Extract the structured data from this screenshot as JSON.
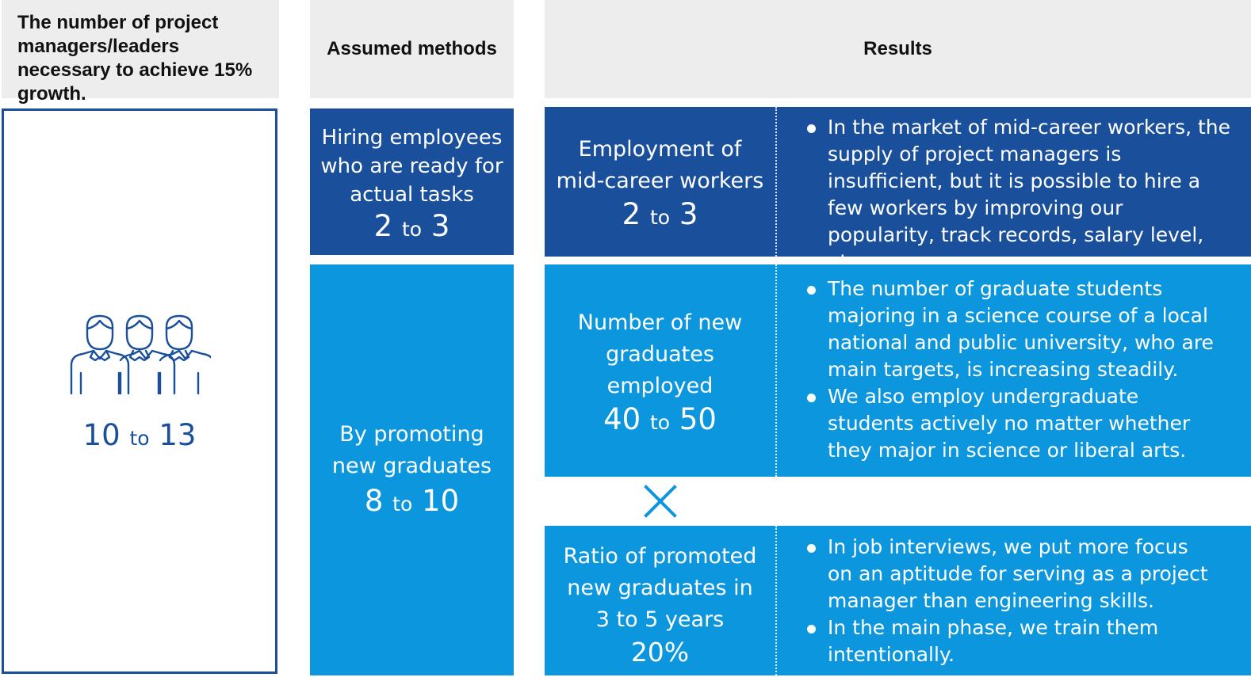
{
  "headers": {
    "col1": "The number of project managers/leaders necessary to achieve 15% growth.",
    "col2": "Assumed methods",
    "col3": "Results"
  },
  "total": {
    "icon": "people-group-icon",
    "from": "10",
    "to_word": "to",
    "to": "13"
  },
  "methods": {
    "hiring": {
      "label": "Hiring employees who are ready for actual tasks",
      "from": "2",
      "to_word": "to",
      "to": "3"
    },
    "promoting": {
      "label": "By promoting new graduates",
      "from": "8",
      "to_word": "to",
      "to": "10"
    }
  },
  "results": {
    "midcareer": {
      "label": "Employment of mid-career workers",
      "from": "2",
      "to_word": "to",
      "to": "3",
      "bullets": [
        "In the market of mid-career workers, the supply of project managers is insufficient, but it is possible to hire a few workers by improving our popularity, track records, salary level, etc."
      ]
    },
    "graduates": {
      "label": "Number of new graduates employed",
      "from": "40",
      "to_word": "to",
      "to": "50",
      "bullets": [
        "The number of graduate students majoring in a science course of a local national and public university, who are main targets, is increasing steadily.",
        "We also employ undergraduate students actively no matter whether they major in science or liberal arts."
      ]
    },
    "multiply_icon": "multiply-icon",
    "ratio": {
      "label": "Ratio of promoted new graduates in 3 to 5 years",
      "value": "20%",
      "bullets": [
        "In job interviews, we put more focus on an aptitude for serving as a project manager than engineering skills.",
        "In the main phase, we train them intentionally."
      ]
    }
  },
  "colors": {
    "dark_blue": "#1a4f9c",
    "light_blue": "#0c96de",
    "header_gray": "#ededed"
  }
}
